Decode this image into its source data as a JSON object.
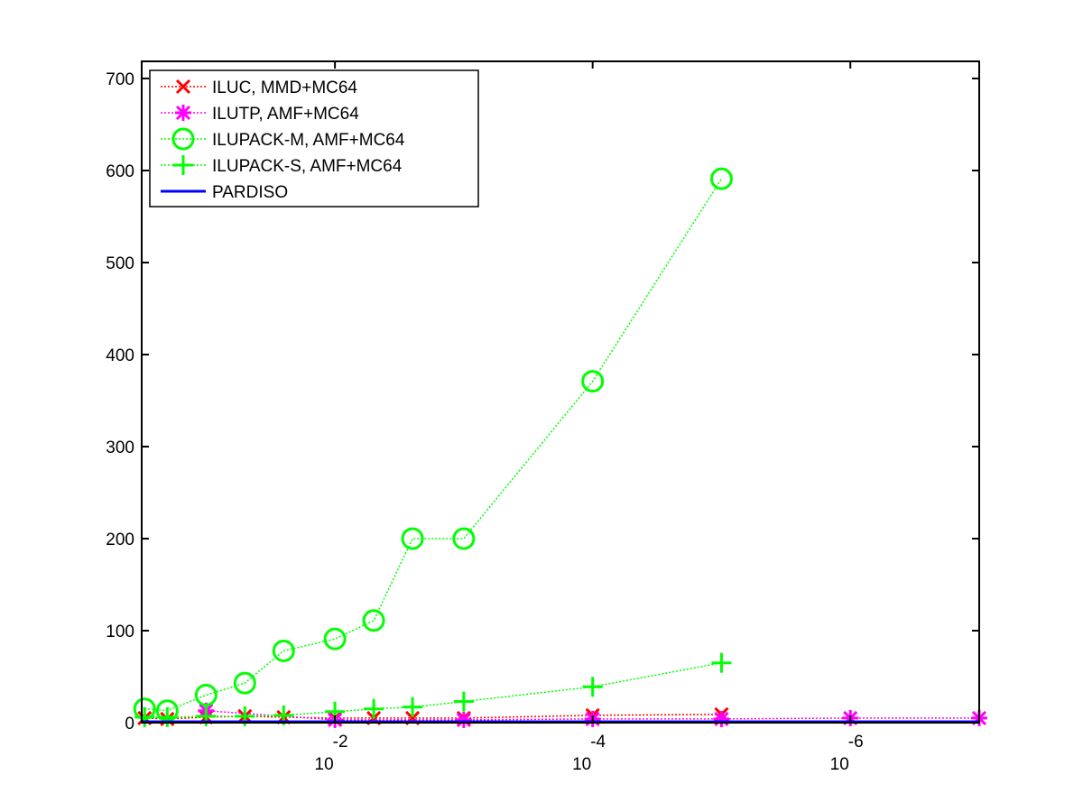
{
  "chart_data": {
    "type": "line",
    "title": "",
    "xlabel": "",
    "ylabel": "",
    "x_scale": "log",
    "x_direction": "decreasing",
    "xlim": [
      0.316,
      1e-07
    ],
    "ylim": [
      0,
      710
    ],
    "y_ticks": [
      0,
      100,
      200,
      300,
      400,
      500,
      600,
      700
    ],
    "x_ticks": [
      {
        "value": 0.01,
        "base": "10",
        "exponent": "-2"
      },
      {
        "value": 0.0001,
        "base": "10",
        "exponent": "-4"
      },
      {
        "value": 1e-06,
        "base": "10",
        "exponent": "-6"
      }
    ],
    "grid": false,
    "legend_position": "top-left",
    "series": [
      {
        "name": "ILUC, MMD+MC64",
        "color": "#ff0000",
        "marker": "x",
        "line_style": "dotted",
        "x": [
          0.3,
          0.2,
          0.1,
          0.05,
          0.025,
          0.01,
          0.005,
          0.0025,
          0.001,
          0.0001,
          1e-05
        ],
        "y": [
          5,
          4,
          6,
          7,
          6,
          5,
          5,
          5,
          5,
          8,
          9
        ]
      },
      {
        "name": "ILUTP, AMF+MC64",
        "color": "#ff00ff",
        "marker": "asterisk",
        "line_style": "dotted",
        "x": [
          0.1,
          0.01,
          0.001,
          0.0001,
          1e-05,
          1e-06,
          1e-07
        ],
        "y": [
          13,
          3,
          3,
          4,
          4,
          5,
          5
        ]
      },
      {
        "name": "ILUPACK-M, AMF+MC64",
        "color": "#00ff00",
        "marker": "circle",
        "line_style": "dotted",
        "x": [
          0.3,
          0.2,
          0.1,
          0.05,
          0.025,
          0.01,
          0.005,
          0.0025,
          0.001,
          0.0001,
          1e-05
        ],
        "y": [
          15,
          13,
          30,
          43,
          78,
          91,
          111,
          200,
          200,
          371,
          591
        ]
      },
      {
        "name": "ILUPACK-S, AMF+MC64",
        "color": "#00ff00",
        "marker": "plus",
        "line_style": "dotted",
        "x": [
          0.3,
          0.2,
          0.1,
          0.05,
          0.025,
          0.01,
          0.005,
          0.0025,
          0.001,
          0.0001,
          1e-05
        ],
        "y": [
          6,
          6,
          7,
          7,
          8,
          12,
          15,
          17,
          23,
          39,
          65
        ]
      },
      {
        "name": "PARDISO",
        "color": "#0000ff",
        "marker": "none",
        "line_style": "solid",
        "x": [
          0.316,
          1e-07
        ],
        "y": [
          1,
          1
        ]
      }
    ]
  }
}
